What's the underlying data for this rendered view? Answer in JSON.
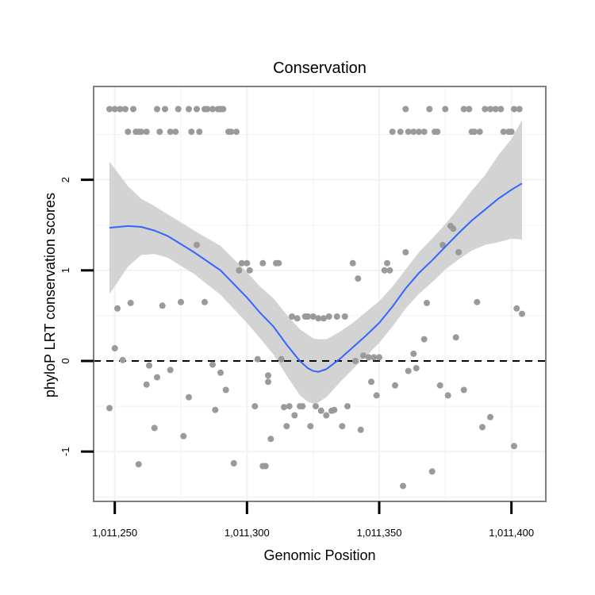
{
  "chart_data": {
    "type": "scatter",
    "title": "Conservation",
    "xlabel": "Genomic Position",
    "ylabel": "phyloP LRT conservation scores",
    "xlim": [
      1011242,
      1011413
    ],
    "ylim": [
      -1.55,
      3.03
    ],
    "x_ticks": [
      1011250,
      1011300,
      1011350,
      1011400
    ],
    "x_tick_labels": [
      "1,011,250",
      "1,011,300",
      "1,011,350",
      "1,011,400"
    ],
    "y_ticks": [
      -1,
      0,
      1,
      2
    ],
    "y_tick_labels": [
      "-1",
      "0",
      "1",
      "2"
    ],
    "grid": true,
    "reference_line": {
      "y": 0,
      "style": "dashed"
    },
    "colors": {
      "points": "#9a9a9a",
      "smooth_line": "#3366ff",
      "confidence_band": "#d3d3d3",
      "panel_border": "#7f7f7f",
      "grid": "#f2f2f2"
    },
    "points": [
      [
        1011248,
        2.78
      ],
      [
        1011250,
        2.78
      ],
      [
        1011252,
        2.78
      ],
      [
        1011254,
        2.78
      ],
      [
        1011257,
        2.78
      ],
      [
        1011266,
        2.78
      ],
      [
        1011269,
        2.78
      ],
      [
        1011274,
        2.78
      ],
      [
        1011278,
        2.78
      ],
      [
        1011281,
        2.78
      ],
      [
        1011284,
        2.78
      ],
      [
        1011285,
        2.78
      ],
      [
        1011287,
        2.78
      ],
      [
        1011289,
        2.78
      ],
      [
        1011290,
        2.78
      ],
      [
        1011291,
        2.78
      ],
      [
        1011255,
        2.53
      ],
      [
        1011258,
        2.53
      ],
      [
        1011259,
        2.53
      ],
      [
        1011260,
        2.53
      ],
      [
        1011262,
        2.53
      ],
      [
        1011267,
        2.53
      ],
      [
        1011271,
        2.53
      ],
      [
        1011273,
        2.53
      ],
      [
        1011279,
        2.53
      ],
      [
        1011282,
        2.53
      ],
      [
        1011293,
        2.53
      ],
      [
        1011294,
        2.53
      ],
      [
        1011296,
        2.53
      ],
      [
        1011248,
        -0.52
      ],
      [
        1011250,
        0.14
      ],
      [
        1011251,
        0.58
      ],
      [
        1011253,
        0.01
      ],
      [
        1011256,
        0.64
      ],
      [
        1011259,
        -1.14
      ],
      [
        1011262,
        -0.26
      ],
      [
        1011263,
        -0.05
      ],
      [
        1011265,
        -0.74
      ],
      [
        1011266,
        -0.18
      ],
      [
        1011268,
        0.61
      ],
      [
        1011271,
        -0.1
      ],
      [
        1011275,
        0.65
      ],
      [
        1011276,
        -0.83
      ],
      [
        1011278,
        -0.4
      ],
      [
        1011281,
        1.28
      ],
      [
        1011284,
        0.65
      ],
      [
        1011287,
        -0.04
      ],
      [
        1011288,
        -0.54
      ],
      [
        1011290,
        -0.13
      ],
      [
        1011292,
        -0.32
      ],
      [
        1011295,
        -1.13
      ],
      [
        1011297,
        1.0
      ],
      [
        1011298,
        1.08
      ],
      [
        1011300,
        1.08
      ],
      [
        1011301,
        1.0
      ],
      [
        1011303,
        -0.5
      ],
      [
        1011304,
        0.02
      ],
      [
        1011306,
        1.08
      ],
      [
        1011306,
        -1.16
      ],
      [
        1011307,
        -1.16
      ],
      [
        1011308,
        -0.16
      ],
      [
        1011308,
        -0.23
      ],
      [
        1011309,
        -0.86
      ],
      [
        1011311,
        1.08
      ],
      [
        1011312,
        1.08
      ],
      [
        1011313,
        0.02
      ],
      [
        1011314,
        -0.51
      ],
      [
        1011315,
        -0.72
      ],
      [
        1011316,
        -0.5
      ],
      [
        1011317,
        0.49
      ],
      [
        1011318,
        -0.6
      ],
      [
        1011319,
        0.47
      ],
      [
        1011320,
        -0.5
      ],
      [
        1011321,
        -0.5
      ],
      [
        1011322,
        0.49
      ],
      [
        1011323,
        0.49
      ],
      [
        1011324,
        -0.72
      ],
      [
        1011325,
        0.49
      ],
      [
        1011326,
        -0.5
      ],
      [
        1011327,
        0.47
      ],
      [
        1011328,
        -0.55
      ],
      [
        1011329,
        0.47
      ],
      [
        1011330,
        -0.6
      ],
      [
        1011331,
        0.49
      ],
      [
        1011332,
        -0.55
      ],
      [
        1011333,
        -0.54
      ],
      [
        1011334,
        0.49
      ],
      [
        1011336,
        -0.72
      ],
      [
        1011337,
        0.49
      ],
      [
        1011338,
        -0.5
      ],
      [
        1011340,
        1.08
      ],
      [
        1011341,
        0.0
      ],
      [
        1011342,
        0.91
      ],
      [
        1011343,
        -0.76
      ],
      [
        1011344,
        0.06
      ],
      [
        1011346,
        0.04
      ],
      [
        1011347,
        -0.23
      ],
      [
        1011348,
        0.04
      ],
      [
        1011349,
        -0.38
      ],
      [
        1011350,
        0.04
      ],
      [
        1011352,
        1.0
      ],
      [
        1011353,
        1.08
      ],
      [
        1011354,
        1.0
      ],
      [
        1011356,
        -0.27
      ],
      [
        1011359,
        -1.38
      ],
      [
        1011360,
        1.2
      ],
      [
        1011361,
        -0.11
      ],
      [
        1011363,
        0.08
      ],
      [
        1011364,
        -0.08
      ],
      [
        1011367,
        0.24
      ],
      [
        1011368,
        0.64
      ],
      [
        1011370,
        -1.22
      ],
      [
        1011373,
        -0.27
      ],
      [
        1011374,
        1.28
      ],
      [
        1011376,
        -0.38
      ],
      [
        1011377,
        1.49
      ],
      [
        1011378,
        1.46
      ],
      [
        1011379,
        0.26
      ],
      [
        1011380,
        1.2
      ],
      [
        1011382,
        -0.32
      ],
      [
        1011387,
        0.65
      ],
      [
        1011389,
        -0.73
      ],
      [
        1011392,
        -0.62
      ],
      [
        1011401,
        -0.94
      ],
      [
        1011402,
        0.58
      ],
      [
        1011404,
        0.52
      ],
      [
        1011360,
        2.78
      ],
      [
        1011369,
        2.78
      ],
      [
        1011375,
        2.78
      ],
      [
        1011382,
        2.78
      ],
      [
        1011384,
        2.78
      ],
      [
        1011390,
        2.78
      ],
      [
        1011392,
        2.78
      ],
      [
        1011394,
        2.78
      ],
      [
        1011396,
        2.78
      ],
      [
        1011401,
        2.78
      ],
      [
        1011403,
        2.78
      ],
      [
        1011355,
        2.53
      ],
      [
        1011358,
        2.53
      ],
      [
        1011361,
        2.53
      ],
      [
        1011363,
        2.53
      ],
      [
        1011365,
        2.53
      ],
      [
        1011367,
        2.53
      ],
      [
        1011371,
        2.53
      ],
      [
        1011372,
        2.53
      ],
      [
        1011385,
        2.53
      ],
      [
        1011386,
        2.53
      ],
      [
        1011388,
        2.53
      ],
      [
        1011397,
        2.53
      ],
      [
        1011399,
        2.53
      ],
      [
        1011400,
        2.53
      ]
    ],
    "smooth": {
      "x": [
        1011248,
        1011255,
        1011260,
        1011265,
        1011270,
        1011280,
        1011290,
        1011300,
        1011305,
        1011310,
        1011315,
        1011320,
        1011323,
        1011325,
        1011327,
        1011330,
        1011335,
        1011340,
        1011345,
        1011350,
        1011355,
        1011360,
        1011365,
        1011370,
        1011375,
        1011380,
        1011385,
        1011390,
        1011395,
        1011400,
        1011404
      ],
      "y": [
        1.47,
        1.49,
        1.48,
        1.44,
        1.38,
        1.2,
        1.0,
        0.7,
        0.53,
        0.38,
        0.18,
        0.0,
        -0.08,
        -0.11,
        -0.12,
        -0.09,
        0.02,
        0.15,
        0.28,
        0.42,
        0.6,
        0.8,
        0.97,
        1.11,
        1.26,
        1.41,
        1.55,
        1.67,
        1.79,
        1.89,
        1.96
      ],
      "lower": [
        0.74,
        1.04,
        1.17,
        1.18,
        1.14,
        0.96,
        0.73,
        0.42,
        0.25,
        0.07,
        -0.16,
        -0.38,
        -0.45,
        -0.47,
        -0.46,
        -0.4,
        -0.24,
        -0.09,
        0.05,
        0.2,
        0.38,
        0.58,
        0.74,
        0.87,
        1.01,
        1.12,
        1.22,
        1.28,
        1.31,
        1.35,
        1.34
      ],
      "upper": [
        2.2,
        1.93,
        1.79,
        1.71,
        1.62,
        1.44,
        1.27,
        0.98,
        0.82,
        0.69,
        0.51,
        0.35,
        0.29,
        0.25,
        0.24,
        0.24,
        0.32,
        0.42,
        0.54,
        0.66,
        0.82,
        1.01,
        1.2,
        1.35,
        1.51,
        1.69,
        1.88,
        2.05,
        2.27,
        2.45,
        2.66
      ]
    }
  }
}
